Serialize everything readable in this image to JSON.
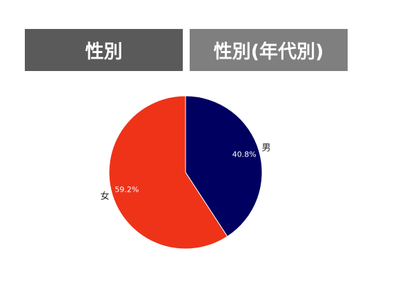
{
  "tabs": [
    "性別",
    "性別(年代別)"
  ],
  "chart_data": {
    "type": "pie",
    "categories": [
      "男",
      "女"
    ],
    "values": [
      40.8,
      59.2
    ],
    "value_labels": [
      "40.8%",
      "59.2%"
    ],
    "colors": [
      "#000060",
      "#ee3319"
    ]
  }
}
